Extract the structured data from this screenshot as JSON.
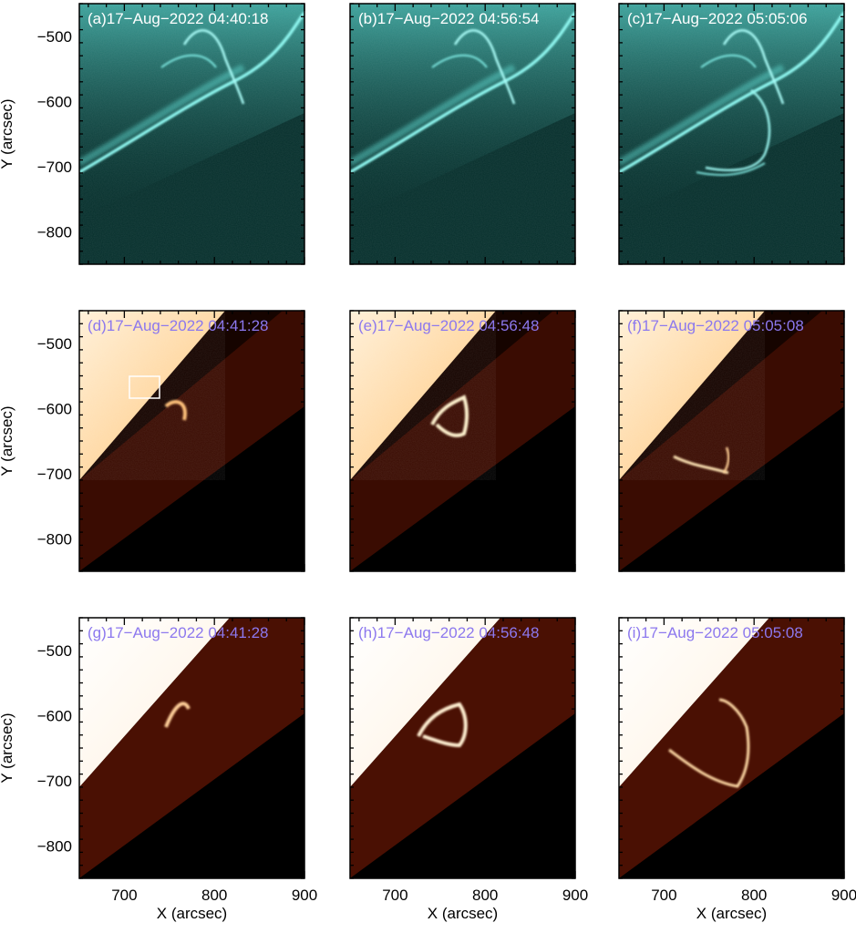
{
  "chart_data": {
    "type": "heatmap",
    "xlabel": "X (arcsec)",
    "ylabel": "Y (arcsec)",
    "xlim": [
      650,
      900
    ],
    "ylim": [
      -850,
      -450
    ],
    "xticks": [
      700,
      800,
      900
    ],
    "yticks": [
      -500,
      -600,
      -700,
      -800
    ],
    "panels": [
      {
        "label": "(a)17−Aug−2022 04:40:18",
        "colormap": "cyan"
      },
      {
        "label": "(b)17−Aug−2022 04:56:54",
        "colormap": "cyan"
      },
      {
        "label": "(c)17−Aug−2022 05:05:06",
        "colormap": "cyan"
      },
      {
        "label": "(d)17−Aug−2022 04:41:28",
        "colormap": "orange"
      },
      {
        "label": "(e)17−Aug−2022 04:56:48",
        "colormap": "orange"
      },
      {
        "label": "(f)17−Aug−2022 05:05:08",
        "colormap": "orange"
      },
      {
        "label": "(g)17−Aug−2022 04:41:28",
        "colormap": "red"
      },
      {
        "label": "(h)17−Aug−2022 04:56:48",
        "colormap": "red"
      },
      {
        "label": "(i)17−Aug−2022 05:05:08",
        "colormap": "red"
      }
    ]
  },
  "colors": {
    "cyan_bg": "#062f2c",
    "cyan_bright": "#8ff7f0",
    "orange_bg": "#160400",
    "orange_bright": "#fff2dc",
    "red_bg": "#1a0300",
    "red_bright": "#ffe7c8",
    "label_white": "#ffffff",
    "label_violet": "#8c78ee"
  }
}
